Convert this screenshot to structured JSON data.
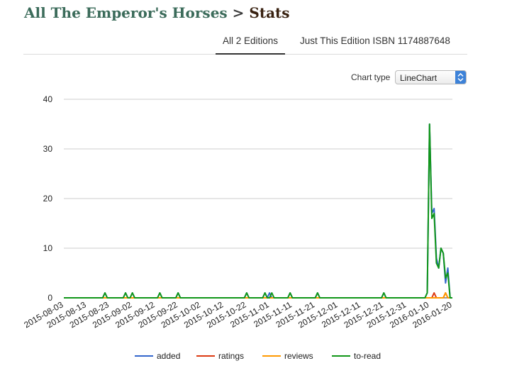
{
  "header": {
    "book_title": "All The Emperor's Horses",
    "separator": ">",
    "page": "Stats"
  },
  "tabs": [
    {
      "label": "All 2 Editions",
      "active": true
    },
    {
      "label": "Just This Edition ISBN 1174887648",
      "active": false
    }
  ],
  "chart_type": {
    "label": "Chart type",
    "value": "LineChart"
  },
  "colors": {
    "accent_select": "#3d82d8",
    "title_link": "#3b6b5a"
  },
  "chart_data": {
    "type": "line",
    "x_tick_labels": [
      "2015-08-03",
      "2015-08-13",
      "2015-08-23",
      "2015-09-02",
      "2015-09-12",
      "2015-09-22",
      "2015-10-02",
      "2015-10-12",
      "2015-10-22",
      "2015-11-01",
      "2015-11-11",
      "2015-11-21",
      "2015-12-01",
      "2015-12-11",
      "2015-12-21",
      "2015-12-31",
      "2016-01-10",
      "2016-01-20"
    ],
    "x_start": "2015-08-03",
    "x_end": "2016-01-20",
    "ylim": [
      0,
      40
    ],
    "y_ticks": [
      0,
      10,
      20,
      30,
      40
    ],
    "grid": true,
    "legend_position": "bottom",
    "series": [
      {
        "name": "added",
        "color": "#3366cc",
        "points": [
          [
            "2015-08-21",
            1
          ],
          [
            "2015-08-30",
            1
          ],
          [
            "2015-09-02",
            1
          ],
          [
            "2015-09-14",
            1
          ],
          [
            "2015-09-22",
            1
          ],
          [
            "2015-10-22",
            1
          ],
          [
            "2015-10-30",
            1
          ],
          [
            "2015-11-01",
            1
          ],
          [
            "2015-11-10",
            1
          ],
          [
            "2015-11-22",
            1
          ],
          [
            "2015-12-21",
            1
          ],
          [
            "2016-01-09",
            1
          ],
          [
            "2016-01-10",
            35
          ],
          [
            "2016-01-11",
            17
          ],
          [
            "2016-01-12",
            18
          ],
          [
            "2016-01-13",
            8
          ],
          [
            "2016-01-14",
            6
          ],
          [
            "2016-01-15",
            10
          ],
          [
            "2016-01-16",
            9
          ],
          [
            "2016-01-17",
            3
          ],
          [
            "2016-01-18",
            6
          ]
        ]
      },
      {
        "name": "ratings",
        "color": "#dc3912",
        "points": [
          [
            "2016-01-12",
            1
          ],
          [
            "2016-01-17",
            1
          ]
        ]
      },
      {
        "name": "reviews",
        "color": "#ff9900",
        "points": [
          [
            "2016-01-17",
            1
          ]
        ]
      },
      {
        "name": "to-read",
        "color": "#109618",
        "points": [
          [
            "2015-08-21",
            1
          ],
          [
            "2015-08-30",
            1
          ],
          [
            "2015-09-02",
            1
          ],
          [
            "2015-09-14",
            1
          ],
          [
            "2015-09-22",
            1
          ],
          [
            "2015-10-22",
            1
          ],
          [
            "2015-10-30",
            1
          ],
          [
            "2015-11-02",
            1
          ],
          [
            "2015-11-10",
            1
          ],
          [
            "2015-11-22",
            1
          ],
          [
            "2015-12-21",
            1
          ],
          [
            "2016-01-09",
            1
          ],
          [
            "2016-01-10",
            35
          ],
          [
            "2016-01-11",
            16
          ],
          [
            "2016-01-12",
            17
          ],
          [
            "2016-01-13",
            7
          ],
          [
            "2016-01-14",
            6
          ],
          [
            "2016-01-15",
            10
          ],
          [
            "2016-01-16",
            9
          ],
          [
            "2016-01-17",
            4
          ],
          [
            "2016-01-18",
            5
          ]
        ]
      }
    ]
  }
}
